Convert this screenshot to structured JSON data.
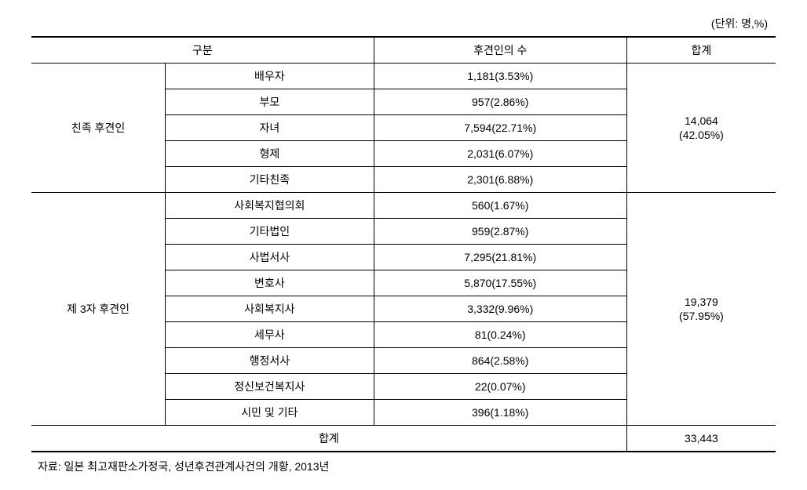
{
  "unit_label": "(단위: 명,%)",
  "header": {
    "category": "구분",
    "count": "후견인의 수",
    "total": "합계"
  },
  "group1": {
    "label": "친족 후견인",
    "rows": [
      {
        "name": "배우자",
        "value": "1,181(3.53%)"
      },
      {
        "name": "부모",
        "value": "957(2.86%)"
      },
      {
        "name": "자녀",
        "value": "7,594(22.71%)"
      },
      {
        "name": "형제",
        "value": "2,031(6.07%)"
      },
      {
        "name": "기타친족",
        "value": "2,301(6.88%)"
      }
    ],
    "subtotal_line1": "14,064",
    "subtotal_line2": "(42.05%)"
  },
  "group2": {
    "label": "제 3자 후견인",
    "rows": [
      {
        "name": "사회복지협의회",
        "value": "560(1.67%)"
      },
      {
        "name": "기타법인",
        "value": "959(2.87%)"
      },
      {
        "name": "사법서사",
        "value": "7,295(21.81%)"
      },
      {
        "name": "변호사",
        "value": "5,870(17.55%)"
      },
      {
        "name": "사회복지사",
        "value": "3,332(9.96%)"
      },
      {
        "name": "세무사",
        "value": "81(0.24%)"
      },
      {
        "name": "행정서사",
        "value": "864(2.58%)"
      },
      {
        "name": "정신보건복지사",
        "value": "22(0.07%)"
      },
      {
        "name": "시민 및 기타",
        "value": "396(1.18%)"
      }
    ],
    "subtotal_line1": "19,379",
    "subtotal_line2": "(57.95%)"
  },
  "total_row": {
    "label": "합계",
    "value": "33,443"
  },
  "source": "자료: 일본 최고재판소가정국, 성년후견관계사건의 개황, 2013년"
}
